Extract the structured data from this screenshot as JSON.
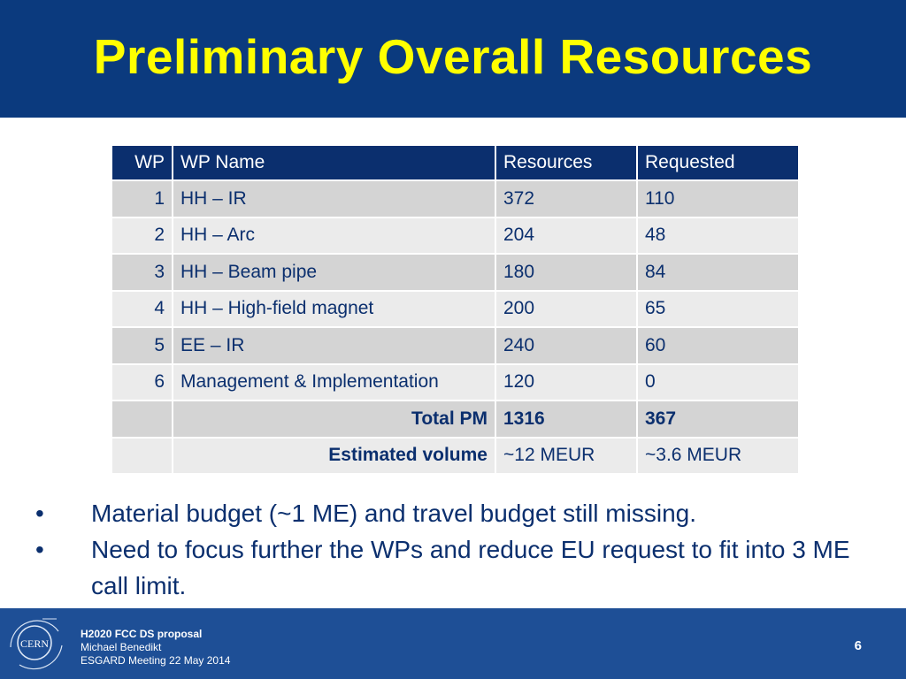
{
  "title": "Preliminary Overall Resources",
  "table": {
    "headers": [
      "WP",
      "WP Name",
      "Resources",
      "Requested"
    ],
    "rows": [
      {
        "wp": "1",
        "name": "HH – IR",
        "resources": "372",
        "requested": "110"
      },
      {
        "wp": "2",
        "name": "HH – Arc",
        "resources": "204",
        "requested": "48"
      },
      {
        "wp": "3",
        "name": "HH – Beam pipe",
        "resources": "180",
        "requested": "84"
      },
      {
        "wp": "4",
        "name": "HH – High-field magnet",
        "resources": "200",
        "requested": "65"
      },
      {
        "wp": "5",
        "name": "EE – IR",
        "resources": "240",
        "requested": "60"
      },
      {
        "wp": "6",
        "name": "Management & Implementation",
        "resources": "120",
        "requested": "0"
      }
    ],
    "total": {
      "label": "Total PM",
      "resources": "1316",
      "requested": "367"
    },
    "estimate": {
      "label": "Estimated volume",
      "resources": "~12 MEUR",
      "requested": "~3.6 MEUR"
    }
  },
  "bullets": [
    "Material budget (~1 ME) and travel budget still missing.",
    "Need to focus further the WPs and reduce EU request to fit into 3 ME call limit."
  ],
  "bullet_symbol": "•",
  "footer": {
    "logo_text": "CERN",
    "line1": "H2020 FCC DS proposal",
    "line2": "Michael Benedikt",
    "line3": "ESGARD Meeting 22 May 2014",
    "page_number": "6"
  },
  "colors": {
    "title_bar": "#0b3a7e",
    "title_text": "#ffff00",
    "table_header": "#0b2f6e",
    "row_dark": "#d4d4d4",
    "row_light": "#ebebeb",
    "footer": "#1e4f96"
  }
}
